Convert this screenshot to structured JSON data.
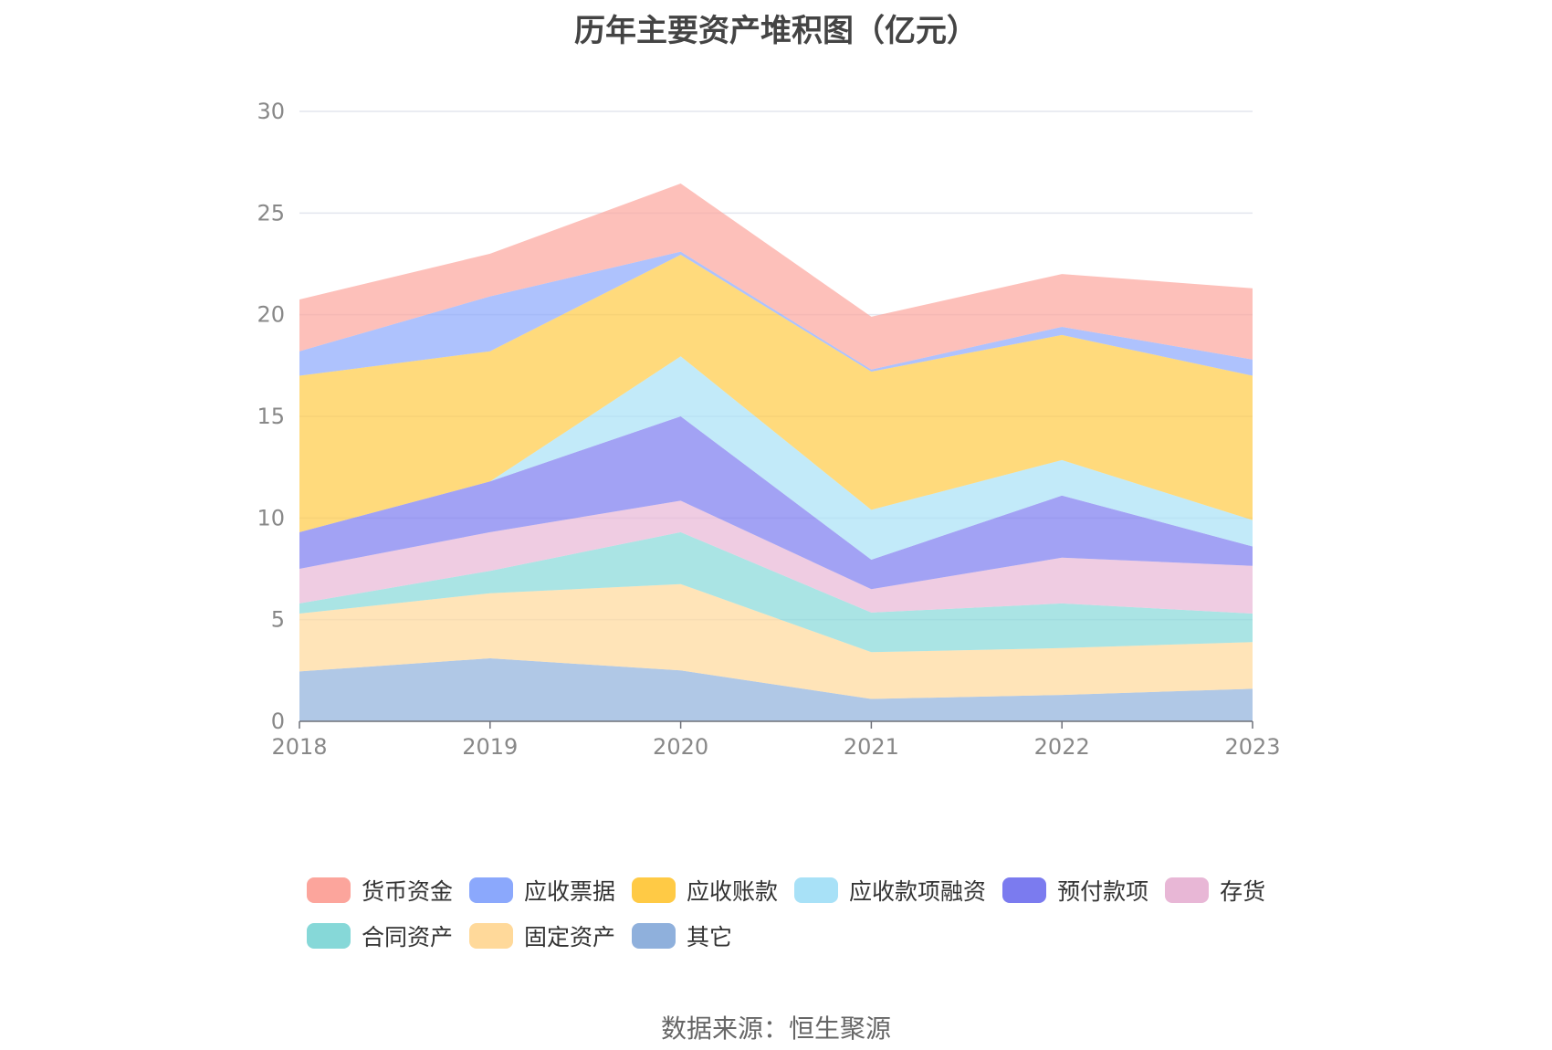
{
  "title": "历年主要资产堆积图（亿元）",
  "source": "数据来源：恒生聚源",
  "chart_data": {
    "type": "area",
    "stacked": true,
    "title": "历年主要资产堆积图（亿元）",
    "x": [
      "2018",
      "2019",
      "2020",
      "2021",
      "2022",
      "2023"
    ],
    "ylim": [
      0,
      30
    ],
    "yticks": [
      0,
      5,
      10,
      15,
      20,
      25,
      30
    ],
    "grid": true,
    "legend_position": "bottom",
    "series": [
      {
        "name": "其它",
        "color": "#8fb0dc",
        "values": [
          2.45,
          3.1,
          2.5,
          1.1,
          1.3,
          1.6
        ]
      },
      {
        "name": "固定资产",
        "color": "#ffd99a",
        "values": [
          2.85,
          3.2,
          4.25,
          2.3,
          2.3,
          2.3
        ]
      },
      {
        "name": "合同资产",
        "color": "#86d8d8",
        "values": [
          0.5,
          1.1,
          2.55,
          1.95,
          2.2,
          1.4
        ]
      },
      {
        "name": "存货",
        "color": "#e8b7d6",
        "values": [
          1.7,
          1.9,
          1.55,
          1.15,
          2.25,
          2.35
        ]
      },
      {
        "name": "预付款项",
        "color": "#7b7bef",
        "values": [
          1.8,
          2.5,
          4.15,
          1.45,
          3.05,
          0.95
        ]
      },
      {
        "name": "应收款项融资",
        "color": "#a8e1f7",
        "values": [
          0.0,
          0.0,
          2.95,
          2.45,
          1.75,
          1.3
        ]
      },
      {
        "name": "应收账款",
        "color": "#ffca45",
        "values": [
          7.7,
          6.4,
          5.0,
          6.8,
          6.15,
          7.1
        ]
      },
      {
        "name": "应收票据",
        "color": "#8ba8fc",
        "values": [
          1.2,
          2.7,
          0.15,
          0.1,
          0.4,
          0.8
        ]
      },
      {
        "name": "货币资金",
        "color": "#fca59c",
        "values": [
          2.55,
          2.1,
          3.35,
          2.6,
          2.6,
          3.5
        ]
      }
    ]
  },
  "legend": {
    "rows": [
      [
        {
          "label": "货币资金",
          "color": "#fca59c"
        },
        {
          "label": "应收票据",
          "color": "#8ba8fc"
        },
        {
          "label": "应收账款",
          "color": "#ffca45"
        },
        {
          "label": "应收款项融资",
          "color": "#a8e1f7"
        },
        {
          "label": "预付款项",
          "color": "#7b7bef"
        },
        {
          "label": "存货",
          "color": "#e8b7d6"
        }
      ],
      [
        {
          "label": "合同资产",
          "color": "#86d8d8"
        },
        {
          "label": "固定资产",
          "color": "#ffd99a"
        },
        {
          "label": "其它",
          "color": "#8fb0dc"
        }
      ]
    ]
  }
}
